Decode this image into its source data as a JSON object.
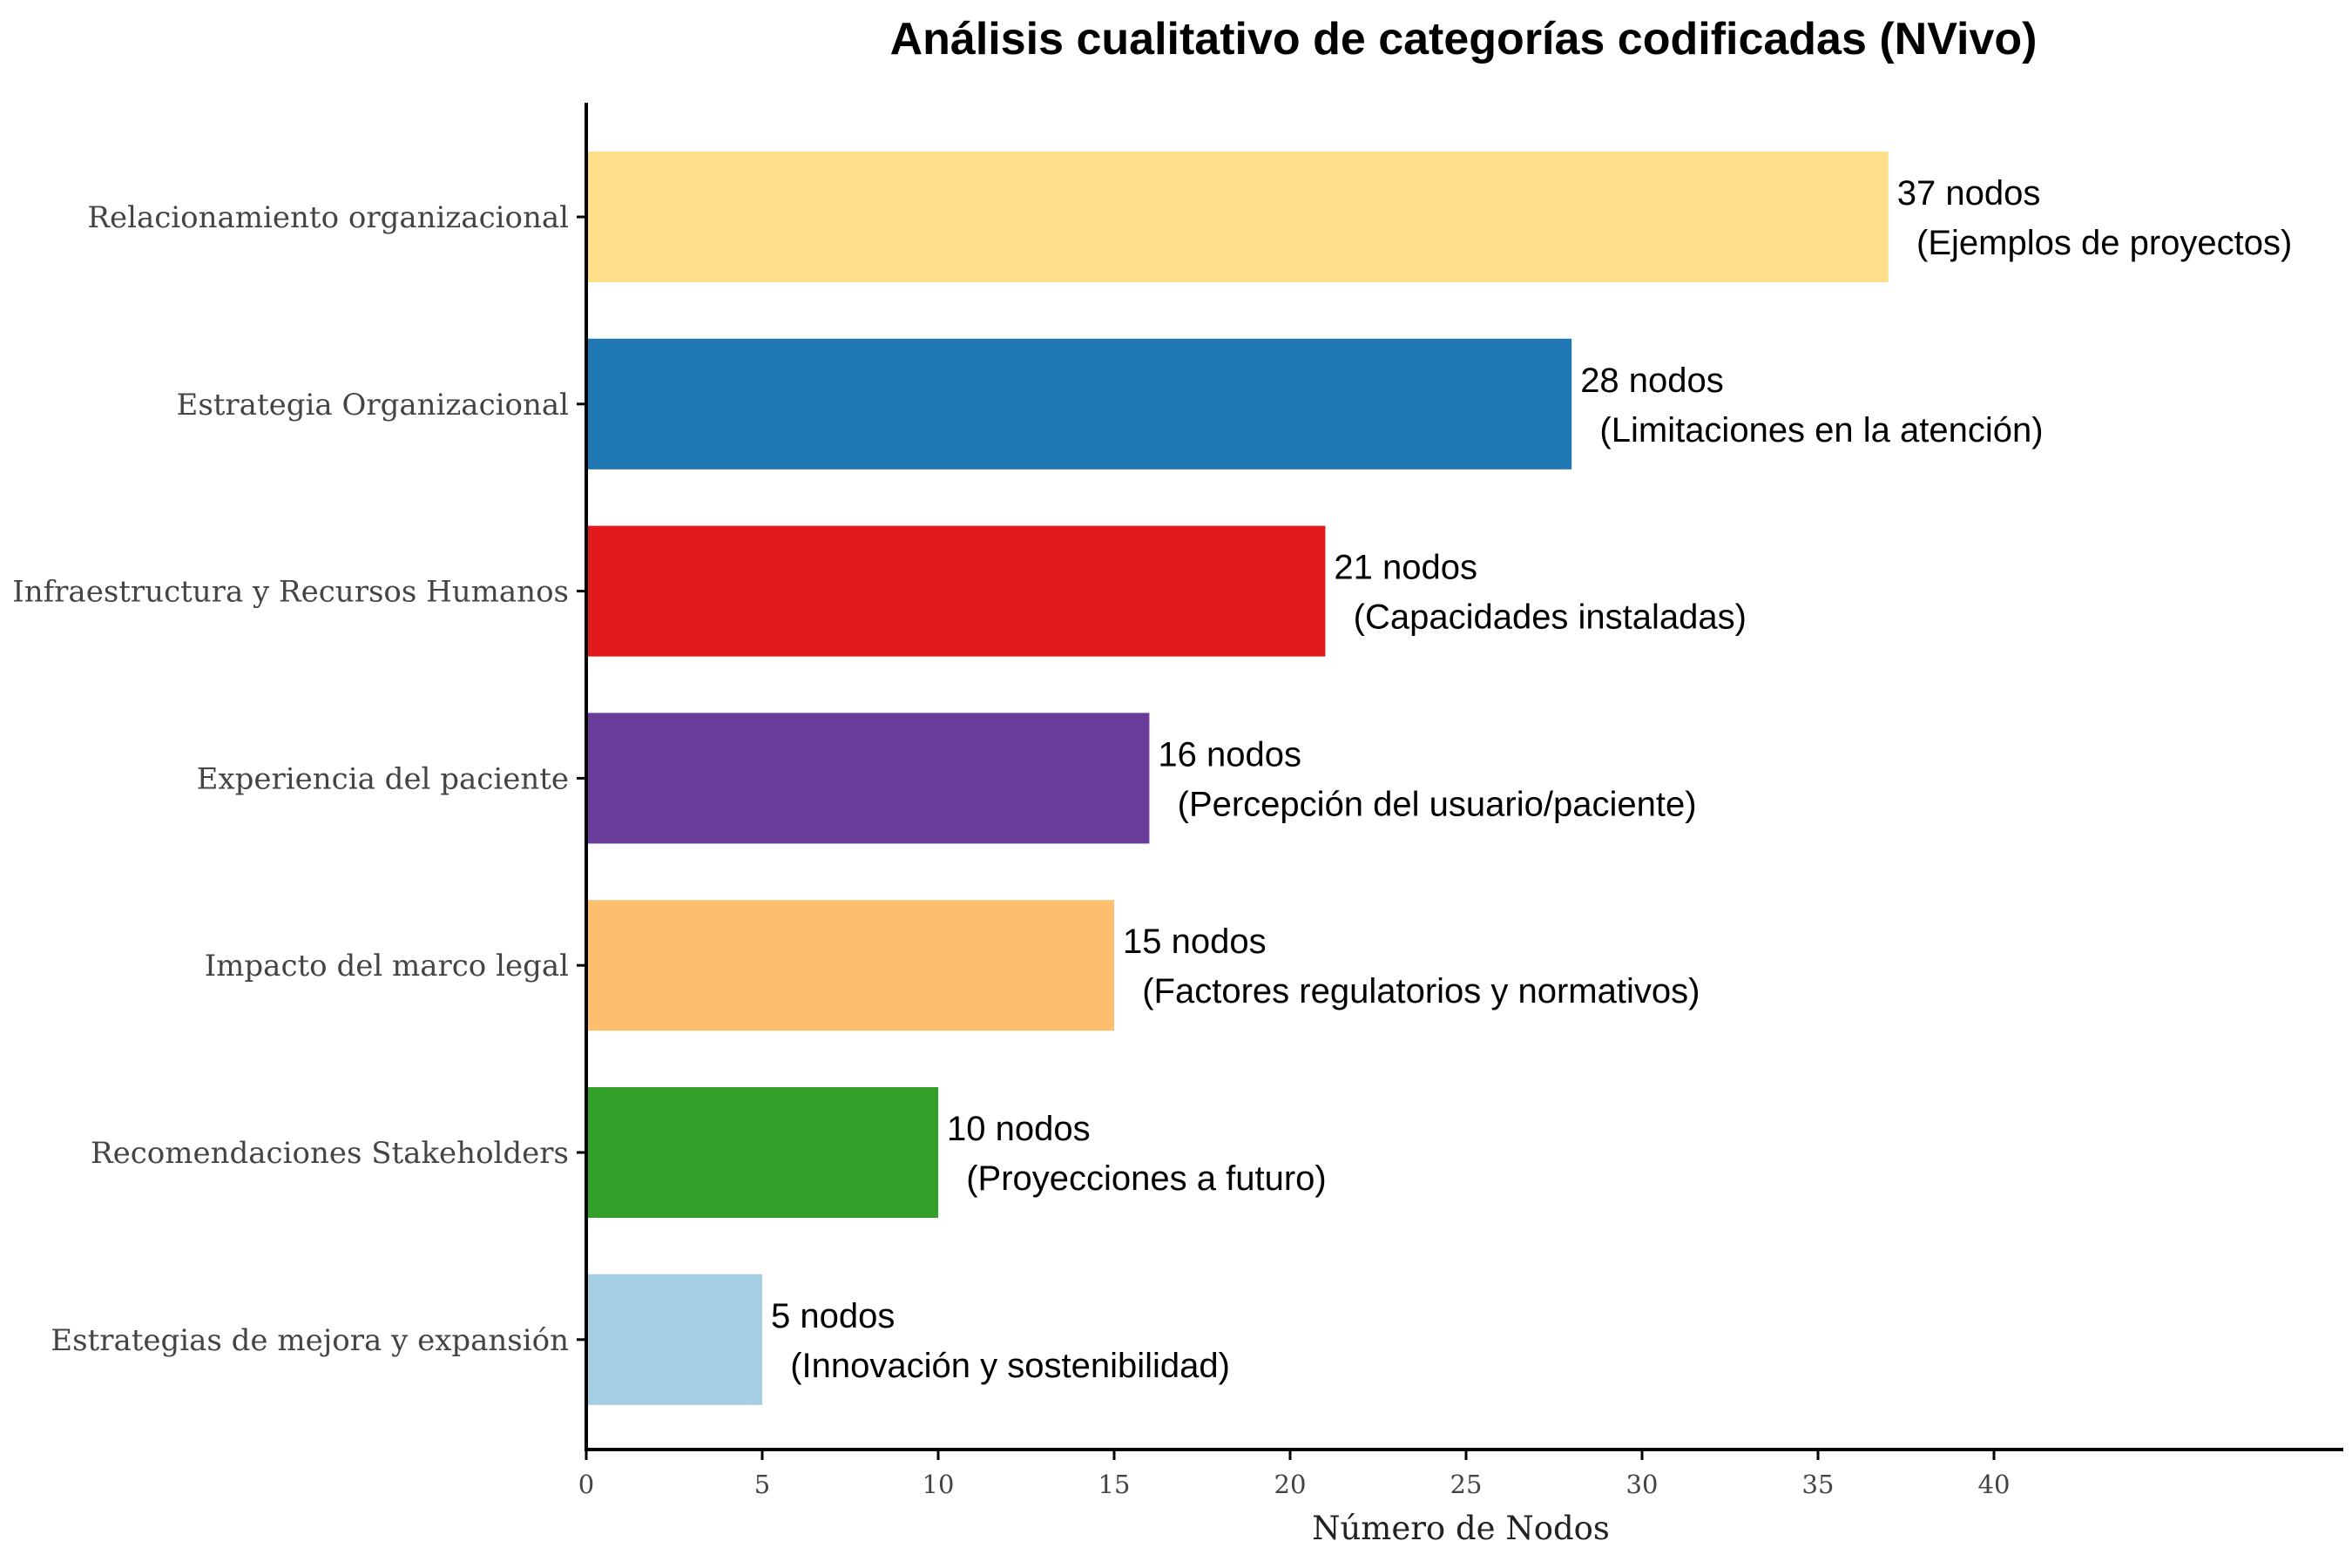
{
  "chart_data": {
    "type": "bar",
    "orientation": "horizontal",
    "title": "Análisis cualitativo de categorías codificadas (NVivo)",
    "xlabel": "Número de Nodos",
    "ylabel": "",
    "xlim": [
      0,
      50
    ],
    "xticks": [
      "0",
      "5",
      "10",
      "15",
      "20",
      "25",
      "30",
      "35",
      "40"
    ],
    "grid": false,
    "legend": "none",
    "categories": [
      "Relacionamiento organizacional",
      "Estrategia Organizacional",
      "Infraestructura y Recursos Humanos",
      "Experiencia del paciente",
      "Impacto del marco legal",
      "Recomendaciones Stakeholders",
      "Estrategias de mejora y expansión"
    ],
    "values": [
      37,
      28,
      21,
      16,
      15,
      10,
      5
    ],
    "colors": [
      "#FEE08B",
      "#1F78B4",
      "#E31A1C",
      "#6A3D9A",
      "#FDBF6F",
      "#33A02C",
      "#A6CEE3"
    ],
    "data_labels": [
      {
        "count": "37 nodos",
        "note": "(Ejemplos de proyectos)"
      },
      {
        "count": "28 nodos",
        "note": "(Limitaciones en la atención)"
      },
      {
        "count": "21 nodos",
        "note": "(Capacidades instaladas)"
      },
      {
        "count": "16 nodos",
        "note": "(Percepción del usuario/paciente)"
      },
      {
        "count": "15 nodos",
        "note": "(Factores regulatorios y normativos)"
      },
      {
        "count": "10 nodos",
        "note": "(Proyecciones a futuro)"
      },
      {
        "count": "5 nodos",
        "note": "(Innovación y sostenibilidad)"
      }
    ]
  }
}
